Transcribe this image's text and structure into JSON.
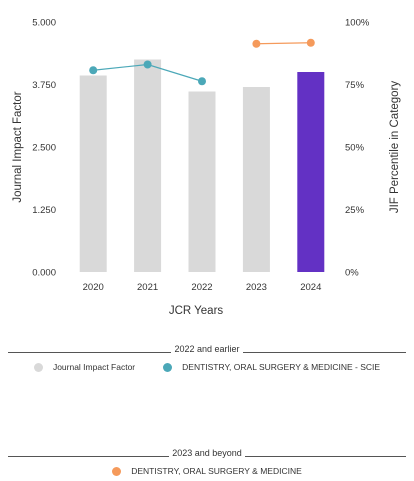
{
  "chart_data": {
    "type": "bar",
    "categories": [
      "2020",
      "2021",
      "2022",
      "2023",
      "2024"
    ],
    "values": [
      3.93,
      4.25,
      3.61,
      3.7,
      4.0
    ],
    "bar_colors": [
      "#d9d9d9",
      "#d9d9d9",
      "#d9d9d9",
      "#d9d9d9",
      "#6331c4"
    ],
    "xlabel": "JCR Years",
    "ylabel": "Journal Impact Factor",
    "y2label": "JIF Percentile in Category",
    "ylim": [
      0,
      5
    ],
    "yticks": [
      "0.000",
      "1.250",
      "2.500",
      "3.750",
      "5.000"
    ],
    "y2lim": [
      0,
      100
    ],
    "y2ticks": [
      "0%",
      "25%",
      "50%",
      "75%",
      "100%"
    ],
    "grid": false,
    "series": [
      {
        "name": "DENTISTRY, ORAL SURGERY & MEDICINE - SCIE",
        "type": "line",
        "axis": "right",
        "color": "#4ba8b8",
        "x": [
          "2020",
          "2021",
          "2022"
        ],
        "values": [
          80.7,
          83.0,
          76.3
        ]
      },
      {
        "name": "DENTISTRY, ORAL SURGERY & MEDICINE",
        "type": "line",
        "axis": "right",
        "color": "#f59a5b",
        "x": [
          "2023",
          "2024"
        ],
        "values": [
          91.3,
          91.7
        ]
      }
    ]
  },
  "legend": {
    "group1_title": "2022 and earlier",
    "group1_items": [
      {
        "label": "Journal Impact Factor",
        "color": "#d9d9d9"
      },
      {
        "label": "DENTISTRY, ORAL SURGERY & MEDICINE - SCIE",
        "color": "#4ba8b8"
      }
    ],
    "group2_title": "2023 and beyond",
    "group2_items": [
      {
        "label": "DENTISTRY, ORAL SURGERY & MEDICINE",
        "color": "#f59a5b"
      }
    ]
  }
}
